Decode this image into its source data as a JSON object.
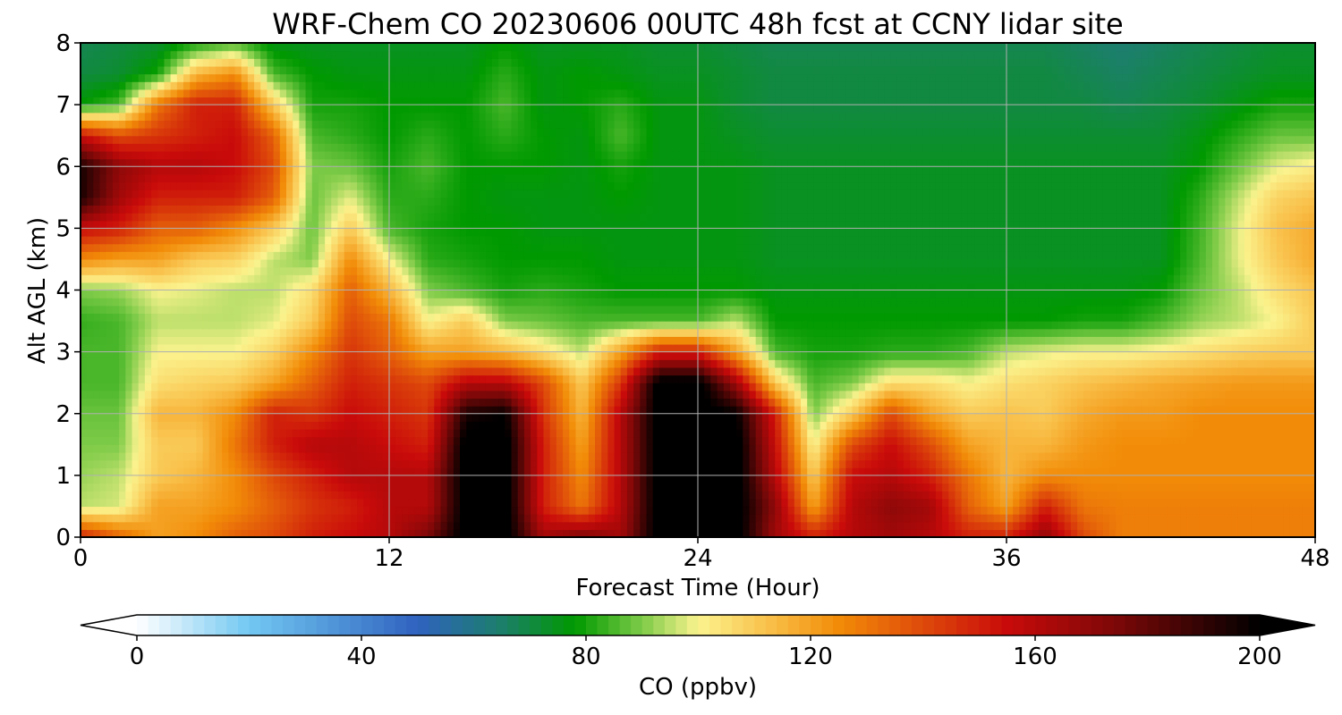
{
  "chart_data": {
    "type": "heatmap",
    "title": "WRF-Chem CO  20230606 00UTC 48h fcst at CCNY lidar site",
    "xlabel": "Forecast Time (Hour)",
    "ylabel": "Alt AGL (km)",
    "xlim": [
      0,
      48
    ],
    "ylim": [
      0,
      8
    ],
    "xticks": [
      0,
      12,
      24,
      36,
      48
    ],
    "yticks": [
      0,
      1,
      2,
      3,
      4,
      5,
      6,
      7,
      8
    ],
    "grid": true,
    "x": [
      0,
      1.5,
      3,
      4.5,
      6,
      7.5,
      9,
      10.5,
      12,
      13.5,
      15,
      16.5,
      18,
      19.5,
      21,
      22.5,
      24,
      25.5,
      27,
      28.5,
      30,
      31.5,
      33,
      34.5,
      36,
      37.5,
      39,
      40.5,
      42,
      43.5,
      45,
      46.5,
      48
    ],
    "y": [
      0,
      0.5,
      1,
      1.5,
      2,
      2.5,
      3,
      3.5,
      4,
      4.5,
      5,
      5.5,
      6,
      6.5,
      7,
      7.5,
      8
    ],
    "values_ppbv_by_altitude": [
      [
        150,
        135,
        120,
        125,
        135,
        140,
        150,
        155,
        160,
        175,
        205,
        205,
        165,
        175,
        165,
        205,
        205,
        205,
        165,
        150,
        160,
        165,
        160,
        150,
        150,
        170,
        140,
        128,
        128,
        128,
        128,
        128,
        128
      ],
      [
        95,
        97,
        120,
        120,
        125,
        135,
        145,
        150,
        160,
        160,
        205,
        205,
        150,
        130,
        160,
        205,
        205,
        205,
        170,
        120,
        160,
        170,
        165,
        135,
        120,
        150,
        130,
        128,
        128,
        128,
        128,
        128,
        128
      ],
      [
        92,
        95,
        110,
        115,
        125,
        140,
        150,
        160,
        160,
        160,
        205,
        205,
        150,
        125,
        160,
        205,
        205,
        205,
        160,
        110,
        155,
        160,
        150,
        130,
        115,
        125,
        125,
        125,
        125,
        125,
        125,
        125,
        125
      ],
      [
        90,
        90,
        110,
        110,
        130,
        150,
        160,
        160,
        155,
        150,
        205,
        205,
        150,
        120,
        160,
        205,
        205,
        205,
        155,
        100,
        140,
        155,
        140,
        120,
        115,
        115,
        122,
        125,
        125,
        125,
        125,
        125,
        125
      ],
      [
        88,
        88,
        115,
        115,
        125,
        150,
        145,
        155,
        150,
        145,
        195,
        200,
        145,
        115,
        160,
        205,
        205,
        200,
        150,
        90,
        110,
        140,
        120,
        110,
        112,
        110,
        118,
        122,
        122,
        125,
        125,
        125,
        125
      ],
      [
        85,
        85,
        105,
        108,
        110,
        120,
        135,
        150,
        145,
        140,
        160,
        160,
        140,
        110,
        145,
        205,
        205,
        165,
        110,
        85,
        90,
        105,
        105,
        100,
        105,
        108,
        112,
        115,
        118,
        120,
        122,
        122,
        122
      ],
      [
        85,
        85,
        100,
        100,
        100,
        108,
        125,
        145,
        135,
        120,
        120,
        115,
        105,
        95,
        120,
        150,
        150,
        120,
        85,
        80,
        80,
        82,
        82,
        85,
        95,
        98,
        100,
        100,
        102,
        105,
        108,
        110,
        110
      ],
      [
        83,
        85,
        95,
        95,
        95,
        98,
        110,
        140,
        130,
        100,
        110,
        90,
        88,
        85,
        85,
        85,
        85,
        95,
        78,
        78,
        78,
        78,
        78,
        78,
        78,
        78,
        80,
        80,
        85,
        92,
        95,
        100,
        110
      ],
      [
        90,
        92,
        100,
        98,
        95,
        95,
        105,
        135,
        115,
        90,
        85,
        80,
        82,
        80,
        78,
        78,
        78,
        78,
        76,
        76,
        76,
        76,
        76,
        76,
        76,
        76,
        76,
        76,
        78,
        88,
        95,
        105,
        112
      ],
      [
        125,
        120,
        120,
        110,
        108,
        95,
        90,
        125,
        100,
        82,
        80,
        78,
        78,
        78,
        76,
        76,
        76,
        76,
        74,
        74,
        74,
        74,
        74,
        74,
        74,
        74,
        74,
        74,
        74,
        85,
        98,
        110,
        118
      ],
      [
        155,
        150,
        135,
        135,
        125,
        110,
        88,
        110,
        85,
        80,
        78,
        78,
        76,
        76,
        76,
        76,
        76,
        76,
        74,
        74,
        74,
        74,
        74,
        74,
        74,
        74,
        74,
        74,
        74,
        84,
        98,
        112,
        118
      ],
      [
        195,
        165,
        150,
        150,
        150,
        135,
        88,
        98,
        82,
        82,
        78,
        76,
        76,
        76,
        78,
        76,
        76,
        76,
        74,
        74,
        74,
        74,
        74,
        74,
        74,
        74,
        74,
        74,
        74,
        82,
        95,
        108,
        112
      ],
      [
        195,
        170,
        160,
        160,
        155,
        140,
        90,
        88,
        80,
        85,
        78,
        78,
        78,
        76,
        80,
        76,
        76,
        76,
        74,
        74,
        74,
        74,
        74,
        74,
        74,
        74,
        74,
        74,
        74,
        78,
        88,
        98,
        102
      ],
      [
        155,
        140,
        145,
        150,
        155,
        135,
        85,
        82,
        78,
        82,
        78,
        82,
        78,
        76,
        85,
        76,
        76,
        74,
        72,
        72,
        72,
        72,
        72,
        72,
        72,
        72,
        72,
        72,
        72,
        76,
        82,
        88,
        88
      ],
      [
        78,
        85,
        130,
        150,
        150,
        110,
        80,
        80,
        78,
        78,
        78,
        85,
        76,
        78,
        82,
        76,
        76,
        72,
        70,
        70,
        70,
        70,
        70,
        70,
        70,
        70,
        70,
        68,
        70,
        72,
        76,
        80,
        80
      ],
      [
        70,
        72,
        80,
        115,
        125,
        85,
        78,
        76,
        76,
        76,
        76,
        82,
        76,
        78,
        76,
        74,
        74,
        72,
        70,
        70,
        70,
        70,
        70,
        70,
        70,
        70,
        68,
        66,
        68,
        70,
        72,
        74,
        74
      ],
      [
        68,
        70,
        72,
        80,
        85,
        75,
        74,
        74,
        74,
        74,
        74,
        78,
        74,
        74,
        74,
        72,
        72,
        70,
        68,
        68,
        68,
        68,
        68,
        68,
        68,
        68,
        66,
        64,
        66,
        68,
        70,
        72,
        72
      ]
    ],
    "colorbar": {
      "label": "CO  (ppbv)",
      "ticks": [
        0,
        40,
        80,
        120,
        160,
        200
      ],
      "range": [
        0,
        200
      ],
      "extend": "both",
      "colormap_stops": [
        {
          "value": 0,
          "color": "#ffffff"
        },
        {
          "value": 20,
          "color": "#72c8f2"
        },
        {
          "value": 50,
          "color": "#2f62bf"
        },
        {
          "value": 65,
          "color": "#1c7f6a"
        },
        {
          "value": 78,
          "color": "#009900"
        },
        {
          "value": 90,
          "color": "#7ecb48"
        },
        {
          "value": 100,
          "color": "#fbf38e"
        },
        {
          "value": 112,
          "color": "#f9c24c"
        },
        {
          "value": 125,
          "color": "#f28c08"
        },
        {
          "value": 140,
          "color": "#de4a0a"
        },
        {
          "value": 155,
          "color": "#c90a0a"
        },
        {
          "value": 175,
          "color": "#7a0808"
        },
        {
          "value": 200,
          "color": "#000000"
        }
      ]
    }
  }
}
